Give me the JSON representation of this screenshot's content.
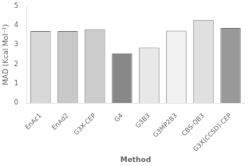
{
  "chart_data": {
    "type": "bar",
    "categories": [
      "EnAc1",
      "EnAd2",
      "G3X-CEP",
      "G4",
      "G3B3",
      "G3MP2B3",
      "CBS-QB3",
      "G3X(CCSD)-CEP"
    ],
    "values": [
      3.72,
      3.72,
      3.82,
      2.57,
      2.87,
      3.74,
      4.28,
      3.88
    ],
    "colors": [
      "#d8d8d8",
      "#c8c8c8",
      "#cccccc",
      "#888888",
      "#e8e8e8",
      "#f2f2f2",
      "#e0e0e0",
      "#999999"
    ],
    "xlabel": "Method",
    "ylabel": "MAD (Kcal Mol⁻¹)",
    "ylim": [
      0,
      5
    ],
    "yticks": [
      0,
      1,
      2,
      3,
      4,
      5
    ],
    "grid": false
  }
}
